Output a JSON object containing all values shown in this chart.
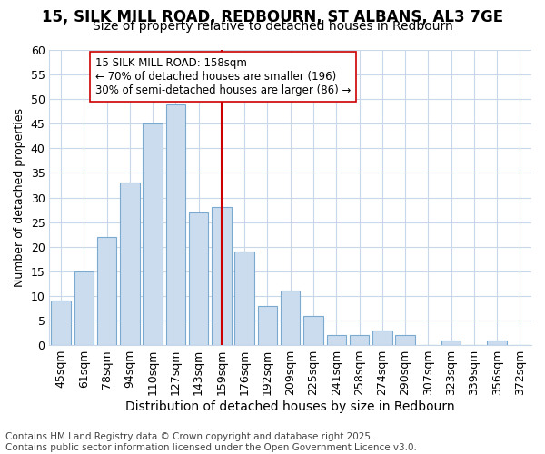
{
  "title_line1": "15, SILK MILL ROAD, REDBOURN, ST ALBANS, AL3 7GE",
  "title_line2": "Size of property relative to detached houses in Redbourn",
  "xlabel": "Distribution of detached houses by size in Redbourn",
  "ylabel": "Number of detached properties",
  "categories": [
    "45sqm",
    "61sqm",
    "78sqm",
    "94sqm",
    "110sqm",
    "127sqm",
    "143sqm",
    "159sqm",
    "176sqm",
    "192sqm",
    "209sqm",
    "225sqm",
    "241sqm",
    "258sqm",
    "274sqm",
    "290sqm",
    "307sqm",
    "323sqm",
    "339sqm",
    "356sqm",
    "372sqm"
  ],
  "values": [
    9,
    15,
    22,
    33,
    45,
    49,
    27,
    28,
    19,
    8,
    11,
    6,
    2,
    2,
    3,
    2,
    0,
    1,
    0,
    1,
    0
  ],
  "bar_color": "#ccdcef",
  "bar_edge_color": "#7aaacf",
  "vline_index": 7,
  "vline_color": "#cc0000",
  "annotation_line1": "15 SILK MILL ROAD: 158sqm",
  "annotation_line2": "← 70% of detached houses are smaller (196)",
  "annotation_line3": "30% of semi-detached houses are larger (86) →",
  "annotation_box_facecolor": "#ffffff",
  "annotation_box_edgecolor": "#cc0000",
  "annotation_fontsize": 8.5,
  "title_fontsize": 12,
  "subtitle_fontsize": 10,
  "xlabel_fontsize": 10,
  "ylabel_fontsize": 9,
  "tick_fontsize": 9,
  "bg_color": "#ffffff",
  "plot_bg_color": "#ffffff",
  "grid_color": "#c8d8e8",
  "footer_text": "Contains HM Land Registry data © Crown copyright and database right 2025.\nContains public sector information licensed under the Open Government Licence v3.0.",
  "footer_fontsize": 7.5,
  "ylim": [
    0,
    60
  ],
  "yticks": [
    0,
    5,
    10,
    15,
    20,
    25,
    30,
    35,
    40,
    45,
    50,
    55,
    60
  ]
}
